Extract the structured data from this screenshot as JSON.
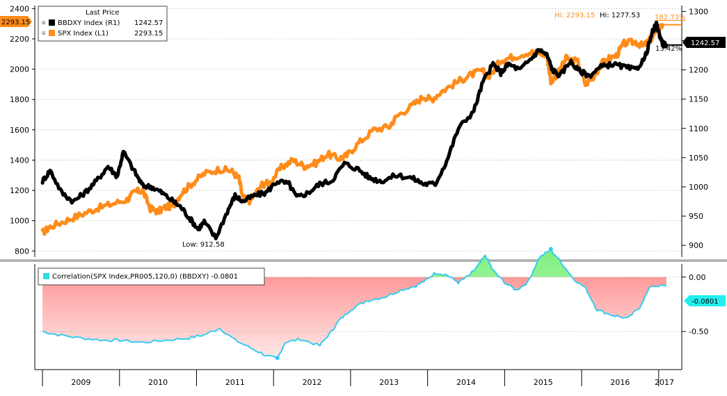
{
  "colors": {
    "spx": "#ff8c1a",
    "bbdxy": "#000000",
    "corr_line": "#33ccee",
    "corr_neg_fill": "#ff7f7f",
    "corr_pos_fill": "#7fef7f",
    "grid": "#9a9a9a"
  },
  "top_legend": {
    "title": "Last Price",
    "items": [
      {
        "key": "bbdxy",
        "label": "BBDXY Index  (R1)",
        "value": "1242.57",
        "color": "#000000"
      },
      {
        "key": "spx",
        "label": "SPX Index  (L1)",
        "value": "2293.15",
        "color": "#ff8c1a"
      }
    ]
  },
  "bottom_legend": {
    "label": "Correlation(SPX Index,PR005,120,0) (BBDXY) -0.0801",
    "color": "#33dddd"
  },
  "annotations": {
    "low": "Low: 912.58",
    "hi_spx": "Hi: 2293.15",
    "hi_bbdxy": "Hi: 1277.53",
    "pct_spx": "182.73%",
    "pct_bbdxy": "13.42%"
  },
  "tags": {
    "spx_last": "2293.15",
    "bbdxy_last": "1242.57",
    "corr_last": "-0.0801"
  },
  "chart_data": {
    "type": "line",
    "panels": [
      {
        "name": "price",
        "x_range": [
          2008.9,
          2017.3
        ],
        "left_axis": {
          "ylim": [
            760,
            2420
          ],
          "ticks": [
            800,
            1000,
            1200,
            1400,
            1600,
            1800,
            2000,
            2200,
            2400
          ]
        },
        "right_axis": {
          "ylim": [
            880,
            1310
          ],
          "ticks": [
            900,
            950,
            1000,
            1050,
            1100,
            1150,
            1200,
            1250,
            1300
          ]
        },
        "series": [
          {
            "name": "SPX Index",
            "axis": "left",
            "points": [
              [
                2009.0,
                920
              ],
              [
                2009.1,
                960
              ],
              [
                2009.3,
                1000
              ],
              [
                2009.5,
                1040
              ],
              [
                2009.7,
                1080
              ],
              [
                2009.9,
                1110
              ],
              [
                2010.1,
                1140
              ],
              [
                2010.2,
                1190
              ],
              [
                2010.3,
                1200
              ],
              [
                2010.4,
                1080
              ],
              [
                2010.5,
                1060
              ],
              [
                2010.6,
                1090
              ],
              [
                2010.7,
                1100
              ],
              [
                2010.8,
                1180
              ],
              [
                2010.95,
                1250
              ],
              [
                2011.1,
                1310
              ],
              [
                2011.3,
                1340
              ],
              [
                2011.45,
                1330
              ],
              [
                2011.55,
                1280
              ],
              [
                2011.6,
                1150
              ],
              [
                2011.7,
                1130
              ],
              [
                2011.85,
                1240
              ],
              [
                2011.95,
                1250
              ],
              [
                2012.1,
                1350
              ],
              [
                2012.25,
                1400
              ],
              [
                2012.4,
                1360
              ],
              [
                2012.55,
                1380
              ],
              [
                2012.7,
                1440
              ],
              [
                2012.85,
                1410
              ],
              [
                2012.95,
                1430
              ],
              [
                2013.1,
                1510
              ],
              [
                2013.3,
                1600
              ],
              [
                2013.5,
                1620
              ],
              [
                2013.6,
                1690
              ],
              [
                2013.8,
                1760
              ],
              [
                2013.95,
                1820
              ],
              [
                2014.05,
                1800
              ],
              [
                2014.2,
                1860
              ],
              [
                2014.4,
                1920
              ],
              [
                2014.55,
                1960
              ],
              [
                2014.7,
                1990
              ],
              [
                2014.8,
                1950
              ],
              [
                2014.95,
                2060
              ],
              [
                2015.1,
                2080
              ],
              [
                2015.3,
                2110
              ],
              [
                2015.45,
                2110
              ],
              [
                2015.55,
                2090
              ],
              [
                2015.6,
                1920
              ],
              [
                2015.7,
                1980
              ],
              [
                2015.8,
                2070
              ],
              [
                2015.95,
                2050
              ],
              [
                2016.05,
                1900
              ],
              [
                2016.15,
                1950
              ],
              [
                2016.3,
                2060
              ],
              [
                2016.45,
                2090
              ],
              [
                2016.55,
                2170
              ],
              [
                2016.7,
                2180
              ],
              [
                2016.8,
                2150
              ],
              [
                2016.9,
                2200
              ],
              [
                2017.0,
                2270
              ],
              [
                2017.05,
                2293.15
              ]
            ]
          },
          {
            "name": "BBDXY Index",
            "axis": "right",
            "points": [
              [
                2009.0,
                1010
              ],
              [
                2009.1,
                1028
              ],
              [
                2009.25,
                990
              ],
              [
                2009.4,
                975
              ],
              [
                2009.55,
                990
              ],
              [
                2009.7,
                1010
              ],
              [
                2009.85,
                1035
              ],
              [
                2009.97,
                1018
              ],
              [
                2010.05,
                1060
              ],
              [
                2010.2,
                1025
              ],
              [
                2010.3,
                1002
              ],
              [
                2010.42,
                1000
              ],
              [
                2010.55,
                990
              ],
              [
                2010.7,
                975
              ],
              [
                2010.8,
                965
              ],
              [
                2010.92,
                945
              ],
              [
                2011.02,
                928
              ],
              [
                2011.1,
                940
              ],
              [
                2011.25,
                912.58
              ],
              [
                2011.4,
                958
              ],
              [
                2011.5,
                985
              ],
              [
                2011.6,
                975
              ],
              [
                2011.75,
                985
              ],
              [
                2011.9,
                990
              ],
              [
                2012.05,
                1010
              ],
              [
                2012.2,
                1005
              ],
              [
                2012.3,
                982
              ],
              [
                2012.45,
                990
              ],
              [
                2012.6,
                1005
              ],
              [
                2012.75,
                1010
              ],
              [
                2012.92,
                1040
              ],
              [
                2013.1,
                1030
              ],
              [
                2013.25,
                1015
              ],
              [
                2013.4,
                1010
              ],
              [
                2013.6,
                1020
              ],
              [
                2013.8,
                1015
              ],
              [
                2013.95,
                1005
              ],
              [
                2014.1,
                1005
              ],
              [
                2014.25,
                1045
              ],
              [
                2014.4,
                1100
              ],
              [
                2014.6,
                1130
              ],
              [
                2014.72,
                1180
              ],
              [
                2014.85,
                1210
              ],
              [
                2014.95,
                1195
              ],
              [
                2015.05,
                1210
              ],
              [
                2015.2,
                1200
              ],
              [
                2015.35,
                1220
              ],
              [
                2015.45,
                1235
              ],
              [
                2015.55,
                1225
              ],
              [
                2015.62,
                1200
              ],
              [
                2015.72,
                1190
              ],
              [
                2015.85,
                1215
              ],
              [
                2015.95,
                1200
              ],
              [
                2016.1,
                1190
              ],
              [
                2016.25,
                1205
              ],
              [
                2016.4,
                1210
              ],
              [
                2016.55,
                1205
              ],
              [
                2016.7,
                1200
              ],
              [
                2016.82,
                1220
              ],
              [
                2016.92,
                1265
              ],
              [
                2016.97,
                1277.53
              ],
              [
                2017.0,
                1265
              ],
              [
                2017.05,
                1245
              ],
              [
                2017.1,
                1242.57
              ]
            ]
          }
        ]
      },
      {
        "name": "correlation",
        "x_range": [
          2008.9,
          2017.3
        ],
        "ylim": [
          -0.85,
          0.12
        ],
        "ticks": [
          0.0,
          -0.5
        ],
        "tick_labels": [
          "0.00",
          "-0.50"
        ],
        "series": [
          {
            "name": "Correlation(SPX Index,PR005,120,0) (BBDXY)",
            "points": [
              [
                2009.0,
                -0.5
              ],
              [
                2009.2,
                -0.53
              ],
              [
                2009.5,
                -0.56
              ],
              [
                2009.8,
                -0.58
              ],
              [
                2010.0,
                -0.58
              ],
              [
                2010.3,
                -0.6
              ],
              [
                2010.6,
                -0.58
              ],
              [
                2010.9,
                -0.56
              ],
              [
                2011.1,
                -0.53
              ],
              [
                2011.3,
                -0.47
              ],
              [
                2011.5,
                -0.58
              ],
              [
                2011.7,
                -0.65
              ],
              [
                2011.9,
                -0.72
              ],
              [
                2012.05,
                -0.75
              ],
              [
                2012.15,
                -0.6
              ],
              [
                2012.35,
                -0.57
              ],
              [
                2012.6,
                -0.63
              ],
              [
                2012.75,
                -0.5
              ],
              [
                2012.85,
                -0.4
              ],
              [
                2013.0,
                -0.3
              ],
              [
                2013.2,
                -0.22
              ],
              [
                2013.45,
                -0.18
              ],
              [
                2013.65,
                -0.12
              ],
              [
                2013.85,
                -0.08
              ],
              [
                2014.0,
                -0.02
              ],
              [
                2014.1,
                0.04
              ],
              [
                2014.25,
                0.02
              ],
              [
                2014.4,
                -0.05
              ],
              [
                2014.55,
                0.02
              ],
              [
                2014.65,
                0.1
              ],
              [
                2014.75,
                0.2
              ],
              [
                2014.85,
                0.06
              ],
              [
                2015.0,
                -0.05
              ],
              [
                2015.15,
                -0.12
              ],
              [
                2015.3,
                -0.05
              ],
              [
                2015.45,
                0.18
              ],
              [
                2015.6,
                0.25
              ],
              [
                2015.75,
                0.12
              ],
              [
                2015.9,
                -0.02
              ],
              [
                2016.05,
                -0.1
              ],
              [
                2016.2,
                -0.3
              ],
              [
                2016.4,
                -0.35
              ],
              [
                2016.6,
                -0.38
              ],
              [
                2016.75,
                -0.28
              ],
              [
                2016.9,
                -0.08
              ],
              [
                2017.1,
                -0.0801
              ]
            ]
          }
        ]
      }
    ],
    "x_tick_labels": [
      "2009",
      "2010",
      "2011",
      "2012",
      "2013",
      "2014",
      "2015",
      "2016",
      "2017"
    ]
  }
}
